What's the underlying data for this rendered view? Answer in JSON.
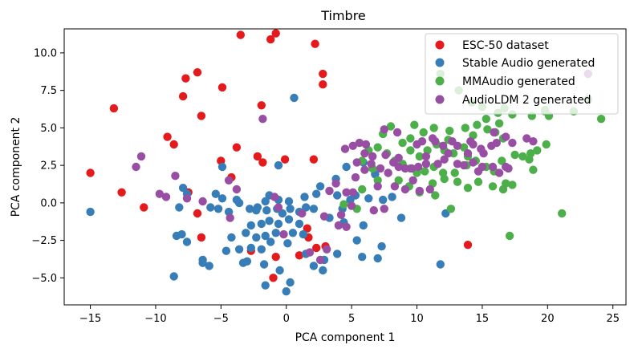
{
  "chart_data": {
    "type": "scatter",
    "title": "Timbre",
    "xlabel": "PCA component 1",
    "ylabel": "PCA component 2",
    "xlim": [
      -17,
      26
    ],
    "ylim": [
      -6.8,
      11.6
    ],
    "xticks": [
      -15,
      -10,
      -5,
      0,
      5,
      10,
      15,
      20,
      25
    ],
    "yticks": [
      -5.0,
      -2.5,
      0.0,
      2.5,
      5.0,
      7.5,
      10.0
    ],
    "ytick_labels": [
      "−5.0",
      "−2.5",
      "0.0",
      "2.5",
      "5.0",
      "7.5",
      "10.0"
    ],
    "xtick_labels": [
      "−15",
      "−10",
      "−5",
      "0",
      "5",
      "10",
      "15",
      "20",
      "25"
    ],
    "legend_position": "top-right",
    "series": [
      {
        "name": "ESC-50 dataset",
        "color": "#e41a1c",
        "points": [
          [
            -3.5,
            11.2
          ],
          [
            -0.8,
            11.3
          ],
          [
            -1.2,
            10.9
          ],
          [
            2.2,
            10.6
          ],
          [
            2.8,
            8.6
          ],
          [
            2.8,
            7.9
          ],
          [
            -6.8,
            8.7
          ],
          [
            -7.7,
            8.3
          ],
          [
            -7.9,
            7.1
          ],
          [
            -4.9,
            7.7
          ],
          [
            -13.2,
            6.3
          ],
          [
            -1.9,
            6.5
          ],
          [
            -6.5,
            5.8
          ],
          [
            -9.1,
            4.4
          ],
          [
            -8.6,
            3.9
          ],
          [
            -3.8,
            3.7
          ],
          [
            -5.0,
            2.8
          ],
          [
            -2.2,
            3.1
          ],
          [
            -1.8,
            2.7
          ],
          [
            -0.1,
            2.9
          ],
          [
            2.1,
            2.9
          ],
          [
            -15.0,
            2.0
          ],
          [
            -4.2,
            1.7
          ],
          [
            -12.6,
            0.7
          ],
          [
            -7.5,
            0.7
          ],
          [
            -10.9,
            -0.3
          ],
          [
            -6.8,
            -0.7
          ],
          [
            -6.5,
            -2.3
          ],
          [
            -2.7,
            -3.2
          ],
          [
            -0.8,
            -3.6
          ],
          [
            1.6,
            -1.7
          ],
          [
            1.7,
            -2.3
          ],
          [
            1.0,
            -3.5
          ],
          [
            3.0,
            -2.9
          ],
          [
            2.3,
            -3.0
          ],
          [
            -1.0,
            -5.0
          ],
          [
            13.9,
            -2.8
          ]
        ]
      },
      {
        "name": "Stable Audio generated",
        "color": "#377eb8",
        "points": [
          [
            -15.0,
            -0.6
          ],
          [
            -7.9,
            1.0
          ],
          [
            -7.6,
            0.6
          ],
          [
            -8.2,
            -0.3
          ],
          [
            -8.4,
            -2.2
          ],
          [
            -8.0,
            -2.1
          ],
          [
            -7.6,
            -2.6
          ],
          [
            -6.4,
            -3.8
          ],
          [
            -6.4,
            -4.0
          ],
          [
            -5.9,
            -4.2
          ],
          [
            -8.6,
            -4.9
          ],
          [
            -5.8,
            -0.3
          ],
          [
            -5.2,
            -0.4
          ],
          [
            -4.4,
            -0.6
          ],
          [
            -5.4,
            0.6
          ],
          [
            -4.9,
            0.3
          ],
          [
            -3.8,
            0.2
          ],
          [
            -3.6,
            0.0
          ],
          [
            -2.8,
            -0.4
          ],
          [
            -2.3,
            -0.5
          ],
          [
            -1.5,
            -0.5
          ],
          [
            -0.7,
            -0.4
          ],
          [
            -0.3,
            -0.7
          ],
          [
            0.3,
            -0.4
          ],
          [
            1.0,
            -0.6
          ],
          [
            1.5,
            -0.3
          ],
          [
            2.1,
            -0.4
          ],
          [
            -1.3,
            0.5
          ],
          [
            -0.6,
            0.2
          ],
          [
            0.2,
            0.1
          ],
          [
            1.4,
            0.4
          ],
          [
            2.3,
            0.6
          ],
          [
            -2.7,
            -1.5
          ],
          [
            -1.9,
            -1.4
          ],
          [
            -1.3,
            -1.2
          ],
          [
            -0.6,
            -1.4
          ],
          [
            0.2,
            -1.1
          ],
          [
            1.0,
            -1.4
          ],
          [
            -3.1,
            -2.0
          ],
          [
            -2.3,
            -2.3
          ],
          [
            -1.6,
            -2.2
          ],
          [
            -0.8,
            -2.0
          ],
          [
            0.5,
            -2.0
          ],
          [
            1.3,
            -2.1
          ],
          [
            -4.2,
            -2.3
          ],
          [
            -3.6,
            -3.1
          ],
          [
            -2.7,
            -3.0
          ],
          [
            -1.9,
            -3.1
          ],
          [
            -1.2,
            -2.6
          ],
          [
            0.1,
            -2.7
          ],
          [
            -3.3,
            -4.0
          ],
          [
            -1.7,
            -4.1
          ],
          [
            -0.5,
            -4.5
          ],
          [
            -4.6,
            -3.2
          ],
          [
            -3.0,
            -3.9
          ],
          [
            2.1,
            -4.2
          ],
          [
            0.3,
            -5.3
          ],
          [
            -1.6,
            -5.5
          ],
          [
            0.0,
            -5.9
          ],
          [
            2.8,
            -4.5
          ],
          [
            3.9,
            -3.4
          ],
          [
            5.4,
            -2.5
          ],
          [
            7.3,
            -2.9
          ],
          [
            5.8,
            -3.6
          ],
          [
            7.0,
            -3.7
          ],
          [
            2.9,
            -3.8
          ],
          [
            1.5,
            -3.4
          ],
          [
            3.3,
            -1.0
          ],
          [
            4.3,
            -0.4
          ],
          [
            4.9,
            0.2
          ],
          [
            5.3,
            0.5
          ],
          [
            6.3,
            0.3
          ],
          [
            7.4,
            0.2
          ],
          [
            8.1,
            0.4
          ],
          [
            8.8,
            -1.0
          ],
          [
            5.9,
            -1.5
          ],
          [
            4.4,
            -1.3
          ],
          [
            3.9,
            0.5
          ],
          [
            2.6,
            1.1
          ],
          [
            3.8,
            1.6
          ],
          [
            4.6,
            2.4
          ],
          [
            5.9,
            2.7
          ],
          [
            6.8,
            1.9
          ],
          [
            -0.6,
            2.5
          ],
          [
            -1.6,
            0.1
          ],
          [
            11.8,
            -4.1
          ],
          [
            12.2,
            -0.7
          ],
          [
            0.6,
            7.0
          ],
          [
            -4.9,
            2.4
          ],
          [
            -2.2,
            -0.3
          ]
        ]
      },
      {
        "name": "MMAudio generated",
        "color": "#4daf4a",
        "points": [
          [
            11.8,
            8.6
          ],
          [
            13.2,
            7.5
          ],
          [
            14.2,
            6.7
          ],
          [
            15.0,
            6.4
          ],
          [
            16.2,
            6.0
          ],
          [
            16.7,
            6.3
          ],
          [
            17.3,
            5.9
          ],
          [
            18.8,
            5.8
          ],
          [
            19.8,
            6.1
          ],
          [
            22.0,
            6.1
          ],
          [
            23.1,
            6.9
          ],
          [
            24.1,
            5.6
          ],
          [
            20.1,
            5.8
          ],
          [
            19.8,
            6.2
          ],
          [
            15.3,
            5.6
          ],
          [
            14.6,
            5.2
          ],
          [
            13.7,
            5.0
          ],
          [
            12.5,
            4.8
          ],
          [
            11.3,
            5.0
          ],
          [
            10.5,
            4.7
          ],
          [
            9.8,
            5.2
          ],
          [
            9.5,
            4.3
          ],
          [
            8.9,
            4.0
          ],
          [
            8.0,
            5.1
          ],
          [
            7.4,
            4.6
          ],
          [
            7.0,
            3.7
          ],
          [
            7.7,
            3.3
          ],
          [
            8.3,
            2.8
          ],
          [
            8.9,
            2.6
          ],
          [
            9.5,
            2.3
          ],
          [
            10.0,
            2.0
          ],
          [
            10.6,
            2.1
          ],
          [
            11.3,
            2.4
          ],
          [
            12.0,
            2.0
          ],
          [
            12.9,
            2.0
          ],
          [
            13.8,
            2.5
          ],
          [
            14.5,
            2.8
          ],
          [
            15.3,
            2.4
          ],
          [
            15.9,
            2.1
          ],
          [
            16.5,
            2.8
          ],
          [
            17.5,
            3.2
          ],
          [
            18.1,
            3.1
          ],
          [
            18.7,
            3.3
          ],
          [
            19.9,
            3.9
          ],
          [
            16.6,
            4.3
          ],
          [
            16.0,
            4.7
          ],
          [
            15.4,
            4.9
          ],
          [
            14.3,
            4.5
          ],
          [
            13.6,
            3.7
          ],
          [
            12.8,
            3.3
          ],
          [
            12.1,
            3.5
          ],
          [
            11.5,
            3.9
          ],
          [
            10.8,
            3.5
          ],
          [
            10.2,
            3.1
          ],
          [
            9.5,
            3.5
          ],
          [
            6.3,
            3.5
          ],
          [
            5.8,
            2.8
          ],
          [
            6.6,
            2.3
          ],
          [
            7.0,
            1.5
          ],
          [
            8.6,
            1.5
          ],
          [
            9.4,
            1.1
          ],
          [
            10.2,
            0.7
          ],
          [
            11.2,
            1.3
          ],
          [
            12.1,
            1.6
          ],
          [
            13.1,
            1.4
          ],
          [
            13.9,
            1.0
          ],
          [
            14.7,
            1.4
          ],
          [
            15.8,
            1.1
          ],
          [
            16.8,
            1.3
          ],
          [
            17.3,
            1.2
          ],
          [
            17.1,
            -2.2
          ],
          [
            21.1,
            -0.7
          ],
          [
            5.8,
            0.9
          ],
          [
            5.4,
            -0.4
          ],
          [
            4.4,
            -0.1
          ],
          [
            12.6,
            -0.4
          ],
          [
            11.4,
            0.5
          ],
          [
            16.6,
            0.9
          ],
          [
            18.6,
            2.9
          ],
          [
            19.2,
            3.5
          ],
          [
            18.9,
            2.2
          ],
          [
            16.3,
            5.3
          ],
          [
            12.4,
            4.2
          ],
          [
            13.9,
            3.1
          ]
        ]
      },
      {
        "name": "AudioLDM 2 generated",
        "color": "#984ea3",
        "points": [
          [
            -1.8,
            5.6
          ],
          [
            -11.1,
            3.1
          ],
          [
            -11.5,
            2.4
          ],
          [
            -8.5,
            1.8
          ],
          [
            -9.2,
            0.4
          ],
          [
            -9.7,
            0.6
          ],
          [
            -7.6,
            0.3
          ],
          [
            -6.4,
            0.1
          ],
          [
            -4.4,
            1.5
          ],
          [
            -3.8,
            0.9
          ],
          [
            -4.3,
            -1.0
          ],
          [
            -0.6,
            -0.3
          ],
          [
            -0.9,
            0.4
          ],
          [
            -0.2,
            -2.1
          ],
          [
            1.2,
            -0.7
          ],
          [
            2.9,
            -0.9
          ],
          [
            3.1,
            -3.1
          ],
          [
            2.6,
            -3.8
          ],
          [
            1.8,
            -3.3
          ],
          [
            3.3,
            0.8
          ],
          [
            3.8,
            1.3
          ],
          [
            4.6,
            0.7
          ],
          [
            5.1,
            0.7
          ],
          [
            5.4,
            2.7
          ],
          [
            5.3,
            1.7
          ],
          [
            4.5,
            3.6
          ],
          [
            5.1,
            3.8
          ],
          [
            5.6,
            4.0
          ],
          [
            6.1,
            3.9
          ],
          [
            6.0,
            3.3
          ],
          [
            6.6,
            3.1
          ],
          [
            6.0,
            2.2
          ],
          [
            6.5,
            2.6
          ],
          [
            7.2,
            2.3
          ],
          [
            7.8,
            2.0
          ],
          [
            8.2,
            2.7
          ],
          [
            8.6,
            2.4
          ],
          [
            9.1,
            2.3
          ],
          [
            9.6,
            2.3
          ],
          [
            10.1,
            2.4
          ],
          [
            10.7,
            2.6
          ],
          [
            11.6,
            2.6
          ],
          [
            12.1,
            2.9
          ],
          [
            13.1,
            2.6
          ],
          [
            13.6,
            2.5
          ],
          [
            14.3,
            2.7
          ],
          [
            15.0,
            2.4
          ],
          [
            15.8,
            2.4
          ],
          [
            16.3,
            2.0
          ],
          [
            17.0,
            2.3
          ],
          [
            7.5,
            4.9
          ],
          [
            8.5,
            4.7
          ],
          [
            10.0,
            3.9
          ],
          [
            10.4,
            4.1
          ],
          [
            11.4,
            4.1
          ],
          [
            11.2,
            4.3
          ],
          [
            12.0,
            3.8
          ],
          [
            12.4,
            3.3
          ],
          [
            13.1,
            3.8
          ],
          [
            13.9,
            3.3
          ],
          [
            14.1,
            4.1
          ],
          [
            14.9,
            3.6
          ],
          [
            15.7,
            3.8
          ],
          [
            16.1,
            4.0
          ],
          [
            16.8,
            4.4
          ],
          [
            17.3,
            4.0
          ],
          [
            18.4,
            4.3
          ],
          [
            18.9,
            4.1
          ],
          [
            7.6,
            3.2
          ],
          [
            7.0,
            1.1
          ],
          [
            8.3,
            1.1
          ],
          [
            9.1,
            0.9
          ],
          [
            10.2,
            0.8
          ],
          [
            11.0,
            0.9
          ],
          [
            9.7,
            1.5
          ],
          [
            6.7,
            -0.5
          ],
          [
            7.5,
            -0.4
          ],
          [
            5.0,
            -0.2
          ],
          [
            4.2,
            -0.8
          ],
          [
            4.0,
            -1.5
          ],
          [
            4.6,
            -1.6
          ],
          [
            15.9,
            4.7
          ],
          [
            15.1,
            3.3
          ],
          [
            16.8,
            2.4
          ],
          [
            14.3,
            3.9
          ],
          [
            23.1,
            8.6
          ],
          [
            14.7,
            2.1
          ],
          [
            10.7,
            3.1
          ],
          [
            12.7,
            4.1
          ],
          [
            8.6,
            3.0
          ]
        ]
      }
    ]
  }
}
